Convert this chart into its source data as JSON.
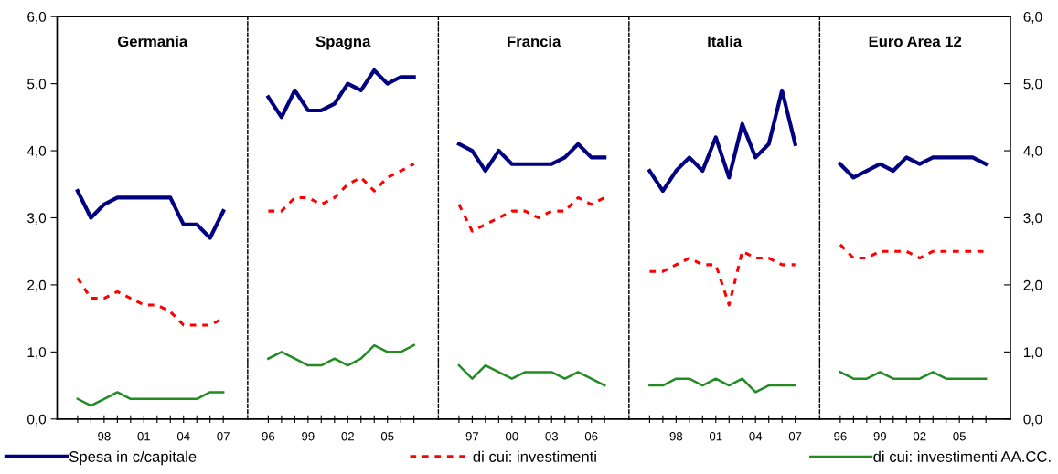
{
  "chart_data": [
    {
      "type": "line",
      "title": "Germania",
      "categories": [
        null,
        null,
        "98",
        null,
        null,
        "01",
        null,
        null,
        "04",
        null,
        null,
        "07"
      ],
      "ylim": [
        0,
        6
      ],
      "yticks": [
        {
          "value": 0,
          "label": "0,0"
        },
        {
          "value": 1,
          "label": "1,0"
        },
        {
          "value": 2,
          "label": "2,0"
        },
        {
          "value": 3,
          "label": "3,0"
        },
        {
          "value": 4,
          "label": "4,0"
        },
        {
          "value": 5,
          "label": "5,0"
        },
        {
          "value": 6,
          "label": "6,0"
        }
      ],
      "legend": "bottom",
      "series": [
        {
          "name": "Spesa in c/capitale",
          "color": "#000080",
          "line_style": "solid",
          "values": [
            3.4,
            3.0,
            3.2,
            3.3,
            3.3,
            3.3,
            3.3,
            3.3,
            2.9,
            2.9,
            2.7,
            3.1
          ]
        },
        {
          "name": "di cui: investimenti",
          "color": "#ff0000",
          "line_style": "dashed",
          "values": [
            2.1,
            1.8,
            1.8,
            1.9,
            1.8,
            1.7,
            1.7,
            1.6,
            1.4,
            1.4,
            1.4,
            1.5
          ]
        },
        {
          "name": "di cui: investimenti AA.CC.",
          "color": "#228b22",
          "line_style": "solid",
          "values": [
            0.3,
            0.2,
            0.3,
            0.4,
            0.3,
            0.3,
            0.3,
            0.3,
            0.3,
            0.3,
            0.4,
            0.4
          ]
        }
      ]
    },
    {
      "type": "line",
      "title": "Spagna",
      "categories": [
        "96",
        null,
        null,
        "99",
        null,
        null,
        "02",
        null,
        null,
        "05",
        null,
        null
      ],
      "ylim": [
        0,
        6
      ],
      "tick_labels": "x",
      "series": [
        {
          "color": "#000080",
          "line_style": "solid",
          "values": [
            4.8,
            4.5,
            4.9,
            4.6,
            4.6,
            4.7,
            5.0,
            4.9,
            5.2,
            5.0,
            5.1,
            5.1
          ]
        },
        {
          "color": "#ff0000",
          "line_style": "dashed",
          "values": [
            3.1,
            3.1,
            3.3,
            3.3,
            3.2,
            3.3,
            3.5,
            3.6,
            3.4,
            3.6,
            3.7,
            3.8
          ]
        },
        {
          "color": "#228b22",
          "line_style": "solid",
          "values": [
            0.9,
            1.0,
            0.9,
            0.8,
            0.8,
            0.9,
            0.8,
            0.9,
            1.1,
            1.0,
            1.0,
            1.1
          ]
        }
      ]
    },
    {
      "type": "line",
      "title": "Francia",
      "categories": [
        null,
        "97",
        null,
        null,
        "00",
        null,
        null,
        "03",
        null,
        null,
        "06",
        null
      ],
      "ylim": [
        0,
        6
      ],
      "tick_labels": "x",
      "series": [
        {
          "color": "#000080",
          "line_style": "solid",
          "values": [
            4.1,
            4.0,
            3.7,
            4.0,
            3.8,
            3.8,
            3.8,
            3.8,
            3.9,
            4.1,
            3.9,
            3.9
          ]
        },
        {
          "color": "#ff0000",
          "line_style": "dashed",
          "values": [
            3.2,
            2.8,
            2.9,
            3.0,
            3.1,
            3.1,
            3.0,
            3.1,
            3.1,
            3.3,
            3.2,
            3.3
          ]
        },
        {
          "color": "#228b22",
          "line_style": "solid",
          "values": [
            0.8,
            0.6,
            0.8,
            0.7,
            0.6,
            0.7,
            0.7,
            0.7,
            0.6,
            0.7,
            0.6,
            0.5
          ]
        }
      ]
    },
    {
      "type": "line",
      "title": "Italia",
      "categories": [
        null,
        null,
        "98",
        null,
        null,
        "01",
        null,
        null,
        "04",
        null,
        null,
        "07"
      ],
      "ylim": [
        0,
        6
      ],
      "tick_labels": "x",
      "series": [
        {
          "color": "#000080",
          "line_style": "solid",
          "values": [
            3.7,
            3.4,
            3.7,
            3.9,
            3.7,
            4.2,
            3.6,
            4.4,
            3.9,
            4.1,
            4.9,
            4.1
          ]
        },
        {
          "color": "#ff0000",
          "line_style": "dashed",
          "values": [
            2.2,
            2.2,
            2.3,
            2.4,
            2.3,
            2.3,
            1.7,
            2.5,
            2.4,
            2.4,
            2.3,
            2.3
          ]
        },
        {
          "color": "#228b22",
          "line_style": "solid",
          "values": [
            0.5,
            0.5,
            0.6,
            0.6,
            0.5,
            0.6,
            0.5,
            0.6,
            0.4,
            0.5,
            0.5,
            0.5
          ]
        }
      ]
    },
    {
      "type": "line",
      "title": "Euro Area 12",
      "categories": [
        "96",
        null,
        null,
        "99",
        null,
        null,
        "02",
        null,
        null,
        "05",
        null,
        null
      ],
      "ylim": [
        0,
        6
      ],
      "yticks": [
        {
          "value": 0,
          "label": "0,0"
        },
        {
          "value": 1,
          "label": "1,0"
        },
        {
          "value": 2,
          "label": "2,0"
        },
        {
          "value": 3,
          "label": "3,0"
        },
        {
          "value": 4,
          "label": "4,0"
        },
        {
          "value": 5,
          "label": "5,0"
        },
        {
          "value": 6,
          "label": "6,0"
        }
      ],
      "series": [
        {
          "color": "#000080",
          "line_style": "solid",
          "values": [
            3.8,
            3.6,
            3.7,
            3.8,
            3.7,
            3.9,
            3.8,
            3.9,
            3.9,
            3.9,
            3.9,
            3.8
          ]
        },
        {
          "color": "#ff0000",
          "line_style": "dashed",
          "values": [
            2.6,
            2.4,
            2.4,
            2.5,
            2.5,
            2.5,
            2.4,
            2.5,
            2.5,
            2.5,
            2.5,
            2.5
          ]
        },
        {
          "color": "#228b22",
          "line_style": "solid",
          "values": [
            0.7,
            0.6,
            0.6,
            0.7,
            0.6,
            0.6,
            0.6,
            0.7,
            0.6,
            0.6,
            0.6,
            0.6
          ]
        }
      ]
    }
  ]
}
